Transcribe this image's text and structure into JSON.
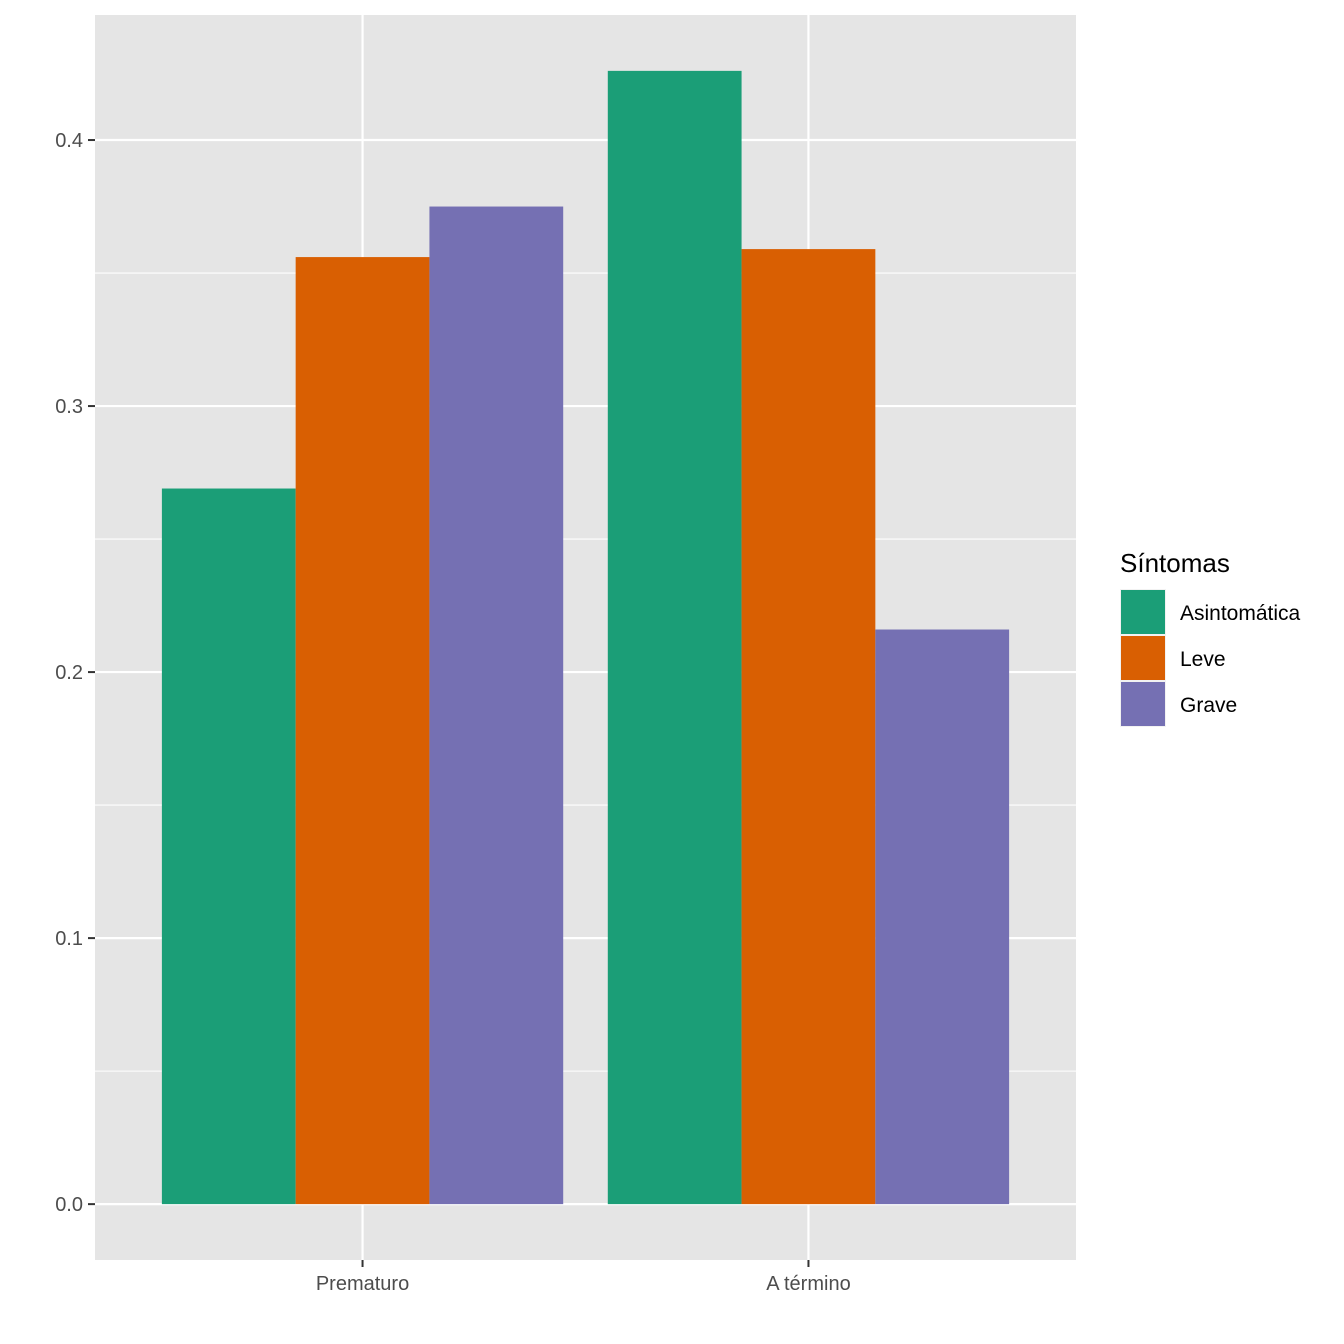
{
  "chart_data": {
    "type": "bar",
    "categories": [
      "Prematuro",
      "A término"
    ],
    "series": [
      {
        "name": "Asintomática",
        "color": "#1B9E77",
        "values": [
          0.269,
          0.426
        ]
      },
      {
        "name": "Leve",
        "color": "#D95F02",
        "values": [
          0.356,
          0.359
        ]
      },
      {
        "name": "Grave",
        "color": "#7570B3",
        "values": [
          0.375,
          0.216
        ]
      }
    ],
    "yticks": [
      "0.0",
      "0.1",
      "0.2",
      "0.3",
      "0.4"
    ],
    "ytick_values": [
      0,
      0.1,
      0.2,
      0.3,
      0.4
    ],
    "ylim": [
      -0.021,
      0.447
    ],
    "legend_title": "Síntomas",
    "legend_position": "right",
    "grid": true,
    "panel_background": "#E5E5E5",
    "grid_color": "#FFFFFF",
    "xlabel": "",
    "ylabel": ""
  }
}
